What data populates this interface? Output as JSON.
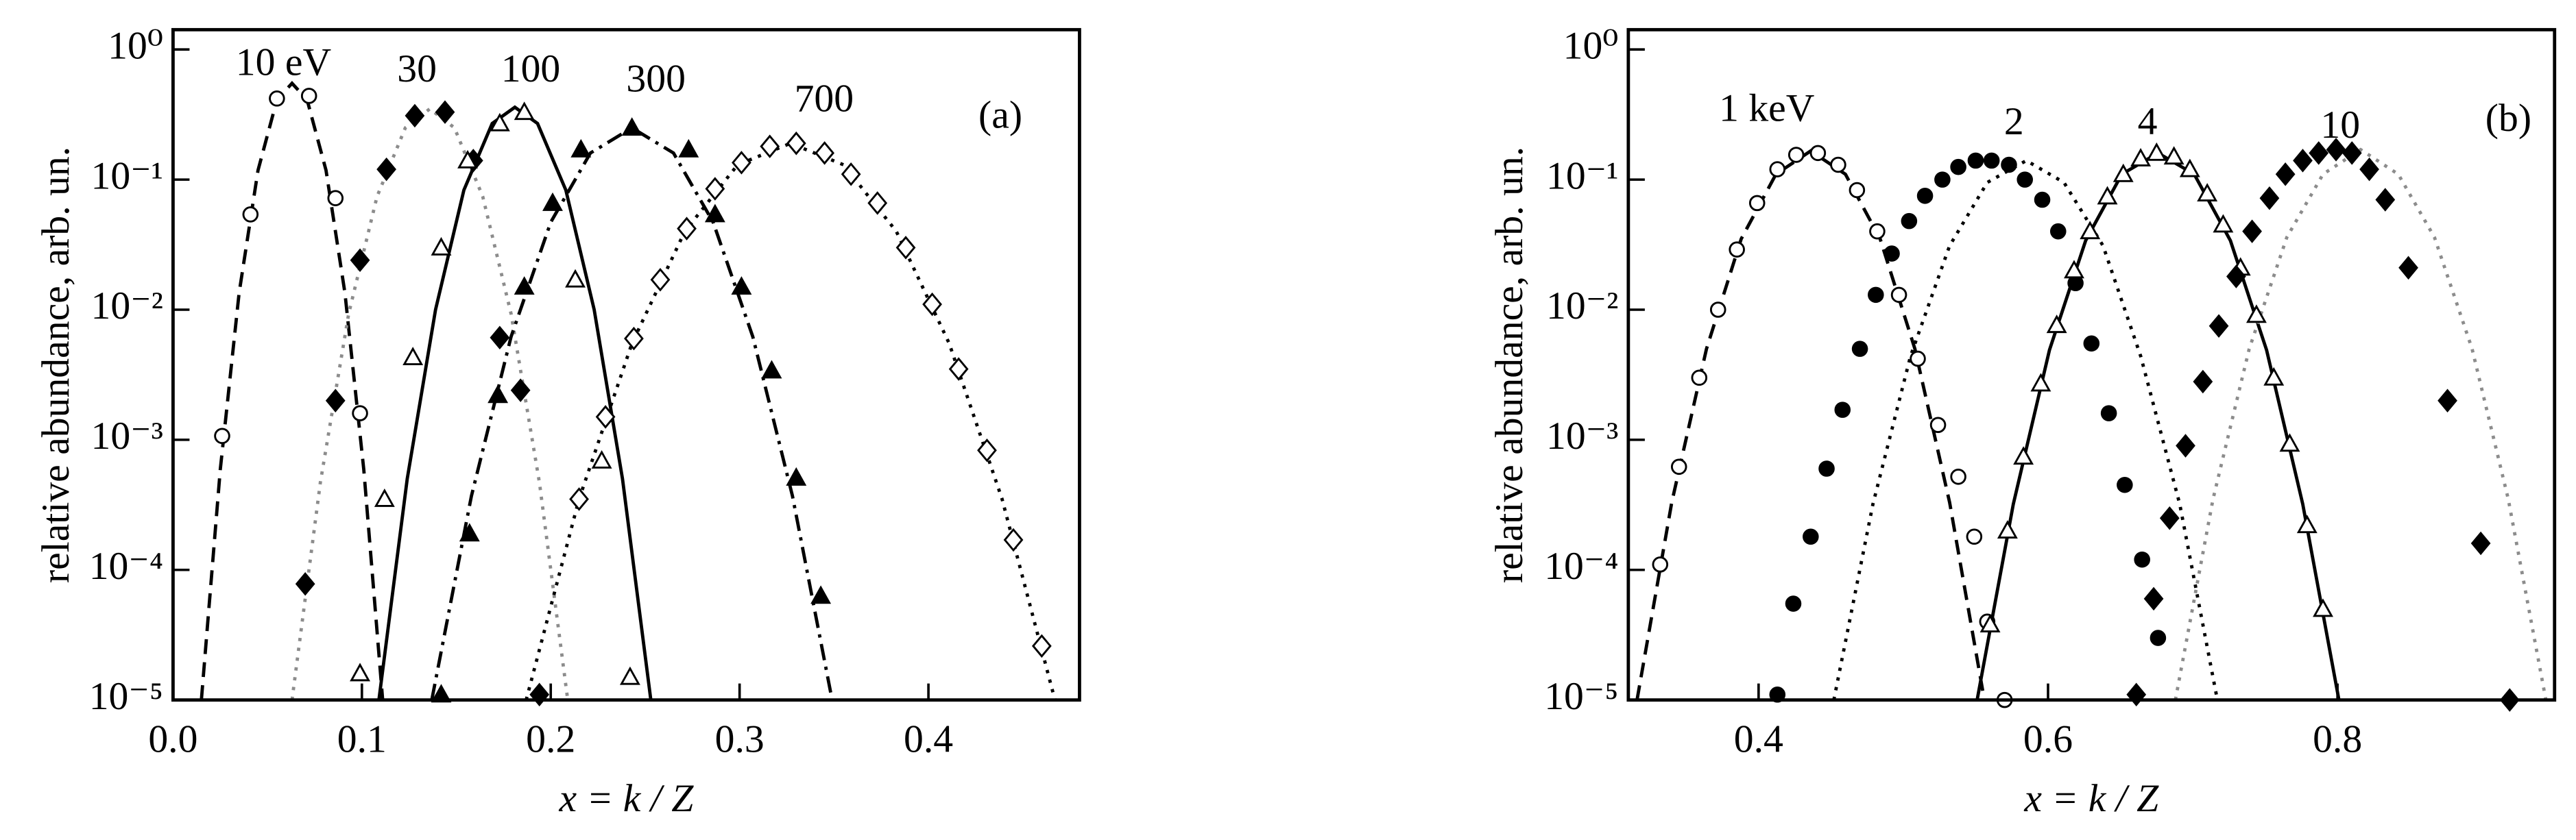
{
  "chart_data": [
    {
      "type": "scatter",
      "yscale": "log",
      "ylabel": "relative abundance, arb. un.",
      "xlabel": "x = k / Z",
      "xlim": [
        0,
        0.48
      ],
      "ylim": [
        1e-05,
        1.42
      ],
      "xticks": [
        {
          "value": 0,
          "label": "0.0"
        },
        0.1,
        0.2,
        0.3,
        0.4
      ],
      "yticks": [
        {
          "value": 1,
          "label": "10⁰"
        },
        {
          "value": 0.1,
          "label": "10⁻¹"
        },
        {
          "value": 0.01,
          "label": "10⁻²"
        },
        {
          "value": 0.001,
          "label": "10⁻³"
        },
        {
          "value": 0.0001,
          "label": "10⁻⁴"
        },
        {
          "value": 1e-05,
          "label": "10⁻⁵"
        }
      ],
      "annotations": [
        "10 eV",
        "30",
        "100",
        "300",
        "700",
        "(a)"
      ],
      "series": [
        {
          "marker": "open-circle",
          "x": [
            0.026,
            0.041,
            0.055,
            0.072,
            0.086,
            0.099
          ],
          "values": [
            0.00107,
            0.054,
            0.42,
            0.44,
            0.072,
            0.0016
          ]
        },
        {
          "marker": "filled-diamond",
          "x": [
            0.07,
            0.086,
            0.099,
            0.113,
            0.128,
            0.144,
            0.159,
            0.173,
            0.184,
            0.194
          ],
          "values": [
            7.8e-05,
            0.002,
            0.024,
            0.12,
            0.31,
            0.33,
            0.14,
            0.0061,
            0.0024,
            1.1e-05
          ]
        },
        {
          "marker": "open-triangle",
          "x": [
            0.099,
            0.112,
            0.127,
            0.142,
            0.156,
            0.173,
            0.186,
            0.213,
            0.227,
            0.242
          ],
          "values": [
            1.6e-05,
            0.00035,
            0.0043,
            0.03,
            0.14,
            0.27,
            0.33,
            0.017,
            0.00069,
            1.5e-05
          ]
        },
        {
          "marker": "filled-triangle",
          "x": [
            0.142,
            0.157,
            0.172,
            0.186,
            0.201,
            0.216,
            0.243,
            0.273,
            0.287,
            0.301,
            0.317,
            0.33,
            0.343
          ],
          "values": [
            1.1e-05,
            0.00019,
            0.0022,
            0.015,
            0.066,
            0.17,
            0.25,
            0.17,
            0.054,
            0.015,
            0.0034,
            0.00051,
            6.3e-05
          ]
        },
        {
          "marker": "open-diamond",
          "x": [
            0.215,
            0.229,
            0.244,
            0.258,
            0.272,
            0.287,
            0.301,
            0.316,
            0.33,
            0.345,
            0.359,
            0.373,
            0.388,
            0.402,
            0.416,
            0.431,
            0.445,
            0.46
          ],
          "values": [
            0.00035,
            0.0015,
            0.006,
            0.017,
            0.042,
            0.085,
            0.135,
            0.18,
            0.19,
            0.16,
            0.11,
            0.066,
            0.03,
            0.011,
            0.0035,
            0.00083,
            0.00017,
            2.6e-05
          ]
        }
      ],
      "curves": [
        {
          "dash": "dashed",
          "color": "#000000",
          "x": [
            0.015,
            0.025,
            0.035,
            0.045,
            0.055,
            0.063,
            0.071,
            0.081,
            0.091,
            0.101,
            0.111
          ],
          "values": [
            1e-05,
            0.00059,
            0.0135,
            0.118,
            0.41,
            0.55,
            0.41,
            0.118,
            0.0135,
            0.00059,
            1e-05
          ]
        },
        {
          "dash": "dotted",
          "color": "#8c8c8c",
          "x": [
            0.063,
            0.078,
            0.093,
            0.108,
            0.123,
            0.136,
            0.149,
            0.164,
            0.179,
            0.194,
            0.209
          ],
          "values": [
            1e-05,
            0.00047,
            0.0093,
            0.074,
            0.25,
            0.35,
            0.25,
            0.074,
            0.0093,
            0.00047,
            1e-05
          ]
        },
        {
          "dash": "solid",
          "color": "#000000",
          "x": [
            0.109,
            0.124,
            0.139,
            0.154,
            0.169,
            0.181,
            0.193,
            0.208,
            0.223,
            0.238,
            0.253
          ],
          "values": [
            1e-05,
            0.0005,
            0.01,
            0.083,
            0.27,
            0.36,
            0.27,
            0.083,
            0.01,
            0.0005,
            1e-05
          ]
        },
        {
          "dash": "dashdot",
          "color": "#000000",
          "x": [
            0.137,
            0.158,
            0.179,
            0.2,
            0.221,
            0.243,
            0.265,
            0.286,
            0.307,
            0.328,
            0.349
          ],
          "values": [
            1e-05,
            0.00037,
            0.0062,
            0.047,
            0.16,
            0.25,
            0.16,
            0.047,
            0.0062,
            0.00037,
            1e-05
          ]
        },
        {
          "dash": "dotted",
          "color": "#000000",
          "x": [
            0.187,
            0.215,
            0.243,
            0.271,
            0.299,
            0.327,
            0.355,
            0.383,
            0.411,
            0.439,
            0.467
          ],
          "values": [
            1e-05,
            0.00035,
            0.0055,
            0.04,
            0.13,
            0.19,
            0.13,
            0.04,
            0.0055,
            0.00035,
            1e-05
          ]
        }
      ]
    },
    {
      "type": "scatter",
      "yscale": "log",
      "ylabel": "relative abundance, arb. un.",
      "xlabel": "x = k / Z",
      "xlim": [
        0.31,
        0.95
      ],
      "ylim": [
        1e-05,
        1.42
      ],
      "xticks": [
        0.4,
        0.6,
        0.8
      ],
      "yticks": [
        {
          "value": 1,
          "label": "10⁰"
        },
        {
          "value": 0.1,
          "label": "10⁻¹"
        },
        {
          "value": 0.01,
          "label": "10⁻²"
        },
        {
          "value": 0.001,
          "label": "10⁻³"
        },
        {
          "value": 0.0001,
          "label": "10⁻⁴"
        },
        {
          "value": 1e-05,
          "label": "10⁻⁵"
        }
      ],
      "annotations": [
        "1 keV",
        "2",
        "4",
        "10",
        "(b)"
      ],
      "series": [
        {
          "marker": "open-circle",
          "x": [
            0.332,
            0.345,
            0.359,
            0.372,
            0.385,
            0.399,
            0.413,
            0.426,
            0.441,
            0.455,
            0.468,
            0.482,
            0.497,
            0.51,
            0.524,
            0.538,
            0.549,
            0.558,
            0.57
          ],
          "values": [
            0.00011,
            0.00062,
            0.003,
            0.01,
            0.029,
            0.066,
            0.12,
            0.155,
            0.16,
            0.13,
            0.083,
            0.04,
            0.013,
            0.0042,
            0.0013,
            0.00052,
            0.00018,
            4e-05,
            1e-05
          ]
        },
        {
          "marker": "filled-circle",
          "x": [
            0.413,
            0.424,
            0.436,
            0.447,
            0.458,
            0.47,
            0.481,
            0.492,
            0.504,
            0.515,
            0.527,
            0.538,
            0.55,
            0.561,
            0.573,
            0.584,
            0.596,
            0.607,
            0.619,
            0.63,
            0.642,
            0.653,
            0.665,
            0.676
          ],
          "values": [
            1.1e-05,
            5.5e-05,
            0.00018,
            0.0006,
            0.0017,
            0.005,
            0.013,
            0.027,
            0.048,
            0.075,
            0.1,
            0.125,
            0.14,
            0.14,
            0.13,
            0.1,
            0.07,
            0.04,
            0.016,
            0.0055,
            0.0016,
            0.00045,
            0.00012,
            3e-05
          ]
        },
        {
          "marker": "open-triangle",
          "x": [
            0.56,
            0.572,
            0.583,
            0.595,
            0.606,
            0.618,
            0.629,
            0.641,
            0.652,
            0.664,
            0.675,
            0.687,
            0.698,
            0.71,
            0.721,
            0.733,
            0.744,
            0.756,
            0.767,
            0.779,
            0.79
          ],
          "values": [
            3.8e-05,
            0.0002,
            0.00074,
            0.0027,
            0.0076,
            0.02,
            0.04,
            0.074,
            0.11,
            0.145,
            0.16,
            0.15,
            0.12,
            0.078,
            0.045,
            0.021,
            0.0091,
            0.003,
            0.00093,
            0.00022,
            5e-05
          ]
        },
        {
          "marker": "filled-diamond",
          "x": [
            0.661,
            0.673,
            0.684,
            0.695,
            0.707,
            0.718,
            0.73,
            0.741,
            0.753,
            0.764,
            0.776,
            0.787,
            0.799,
            0.81,
            0.822,
            0.833,
            0.849,
            0.876,
            0.899,
            0.919
          ],
          "values": [
            1.1e-05,
            6e-05,
            0.00025,
            0.0009,
            0.0028,
            0.0075,
            0.018,
            0.04,
            0.072,
            0.11,
            0.14,
            0.16,
            0.17,
            0.16,
            0.12,
            0.07,
            0.021,
            0.002,
            0.00016,
            1e-05
          ]
        }
      ],
      "curves": [
        {
          "dash": "dashed",
          "color": "#000000",
          "x": [
            0.316,
            0.34,
            0.364,
            0.388,
            0.412,
            0.436,
            0.46,
            0.484,
            0.508,
            0.532,
            0.556
          ],
          "values": [
            1e-05,
            0.00033,
            0.005,
            0.035,
            0.11,
            0.166,
            0.11,
            0.035,
            0.005,
            0.00033,
            1e-05
          ]
        },
        {
          "dash": "dotted",
          "color": "#000000",
          "x": [
            0.452,
            0.479,
            0.505,
            0.532,
            0.558,
            0.585,
            0.611,
            0.638,
            0.664,
            0.691,
            0.717
          ],
          "values": [
            1e-05,
            0.00032,
            0.0044,
            0.031,
            0.095,
            0.14,
            0.095,
            0.031,
            0.0044,
            0.00032,
            1e-05
          ]
        },
        {
          "dash": "solid",
          "color": "#000000",
          "x": [
            0.551,
            0.576,
            0.601,
            0.626,
            0.651,
            0.676,
            0.701,
            0.726,
            0.751,
            0.776,
            0.801
          ],
          "values": [
            1e-05,
            0.00032,
            0.0049,
            0.034,
            0.11,
            0.16,
            0.11,
            0.034,
            0.0049,
            0.00032,
            1e-05
          ]
        },
        {
          "dash": "dotted",
          "color": "#8c8c8c",
          "x": [
            0.688,
            0.714,
            0.739,
            0.765,
            0.79,
            0.816,
            0.842,
            0.867,
            0.893,
            0.918,
            0.944
          ],
          "values": [
            1e-05,
            0.00035,
            0.005,
            0.036,
            0.11,
            0.17,
            0.11,
            0.036,
            0.005,
            0.00035,
            1e-05
          ]
        }
      ]
    }
  ]
}
